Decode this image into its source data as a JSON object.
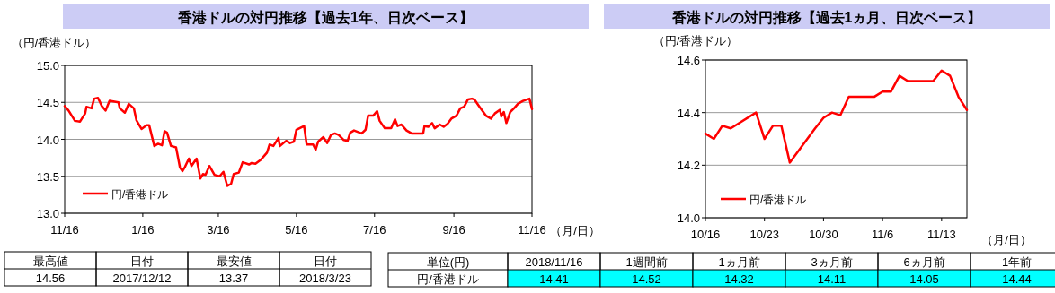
{
  "chart_data": [
    {
      "type": "line",
      "title": "香港ドルの対円推移【過去1年、日次ベース】",
      "ylabel": "（円/香港ドル）",
      "xlabel": "（月/日）",
      "legend": "bottom left",
      "grid": "y",
      "line_style": "solid",
      "marker": "none",
      "xlim": [
        "2017-11-16",
        "2018-11-16"
      ],
      "xticks": [
        {
          "value": "2017-11-16",
          "label": "11/16"
        },
        {
          "value": "2018-01-16",
          "label": "1/16"
        },
        {
          "value": "2018-03-16",
          "label": "3/16"
        },
        {
          "value": "2018-05-16",
          "label": "5/16"
        },
        {
          "value": "2018-07-16",
          "label": "7/16"
        },
        {
          "value": "2018-09-16",
          "label": "9/16"
        },
        {
          "value": "2018-11-16",
          "label": "11/16"
        }
      ],
      "ylim": [
        13,
        15
      ],
      "yticks": [
        {
          "value": 13,
          "label": "13.0"
        },
        {
          "value": 13.5,
          "label": "13.5"
        },
        {
          "value": 14,
          "label": "14.0"
        },
        {
          "value": 14.5,
          "label": "14.5"
        },
        {
          "value": 15,
          "label": "15.0"
        }
      ],
      "x": [
        "2017-11-16",
        "2017-11-19",
        "2017-11-24",
        "2017-11-28",
        "2017-12-02",
        "2017-12-03",
        "2017-12-07",
        "2017-12-09",
        "2017-12-12",
        "2017-12-15",
        "2017-12-18",
        "2017-12-21",
        "2017-12-28",
        "2017-12-29",
        "2018-01-02",
        "2018-01-05",
        "2018-01-09",
        "2018-01-11",
        "2018-01-15",
        "2018-01-19",
        "2018-01-21",
        "2018-01-25",
        "2018-01-28",
        "2018-01-31",
        "2018-02-02",
        "2018-02-04",
        "2018-02-07",
        "2018-02-11",
        "2018-02-14",
        "2018-02-16",
        "2018-02-18",
        "2018-02-21",
        "2018-02-23",
        "2018-02-27",
        "2018-03-02",
        "2018-03-04",
        "2018-03-06",
        "2018-03-09",
        "2018-03-13",
        "2018-03-17",
        "2018-03-20",
        "2018-03-23",
        "2018-03-26",
        "2018-03-28",
        "2018-04-01",
        "2018-04-04",
        "2018-04-09",
        "2018-04-11",
        "2018-04-14",
        "2018-04-18",
        "2018-04-23",
        "2018-04-25",
        "2018-04-28",
        "2018-05-02",
        "2018-05-03",
        "2018-05-08",
        "2018-05-11",
        "2018-05-14",
        "2018-05-16",
        "2018-05-22",
        "2018-05-24",
        "2018-05-29",
        "2018-05-31",
        "2018-06-02",
        "2018-06-06",
        "2018-06-09",
        "2018-06-12",
        "2018-06-15",
        "2018-06-18",
        "2018-06-22",
        "2018-06-25",
        "2018-06-27",
        "2018-06-30",
        "2018-07-06",
        "2018-07-09",
        "2018-07-11",
        "2018-07-15",
        "2018-07-18",
        "2018-07-20",
        "2018-07-24",
        "2018-07-29",
        "2018-08-01",
        "2018-08-03",
        "2018-08-06",
        "2018-08-10",
        "2018-08-14",
        "2018-08-23",
        "2018-08-24",
        "2018-08-27",
        "2018-08-30",
        "2018-09-01",
        "2018-09-05",
        "2018-09-08",
        "2018-09-11",
        "2018-09-14",
        "2018-09-18",
        "2018-09-21",
        "2018-09-24",
        "2018-09-27",
        "2018-09-30",
        "2018-10-02",
        "2018-10-06",
        "2018-10-11",
        "2018-10-15",
        "2018-10-18",
        "2018-10-22",
        "2018-10-23",
        "2018-10-25",
        "2018-10-27",
        "2018-10-30",
        "2018-11-02",
        "2018-11-05",
        "2018-11-09",
        "2018-11-14",
        "2018-11-16"
      ],
      "series": [
        {
          "name": "円/香港ドル",
          "color": "#ff0000",
          "values": [
            14.45,
            14.39,
            14.25,
            14.24,
            14.35,
            14.44,
            14.42,
            14.55,
            14.56,
            14.45,
            14.39,
            14.52,
            14.5,
            14.42,
            14.36,
            14.48,
            14.42,
            14.26,
            14.14,
            14.19,
            14.19,
            13.91,
            13.94,
            13.92,
            14.11,
            14.09,
            13.91,
            13.89,
            13.62,
            13.57,
            13.63,
            13.74,
            13.64,
            13.74,
            13.47,
            13.53,
            13.52,
            13.64,
            13.52,
            13.5,
            13.56,
            13.37,
            13.4,
            13.53,
            13.55,
            13.69,
            13.66,
            13.68,
            13.67,
            13.72,
            13.82,
            13.93,
            13.91,
            14.02,
            13.91,
            13.98,
            13.95,
            13.97,
            14.13,
            14.18,
            13.93,
            13.93,
            13.86,
            13.97,
            14.03,
            13.95,
            14.06,
            14.08,
            14.06,
            13.99,
            13.98,
            14.09,
            14.12,
            14.08,
            14.13,
            14.32,
            14.32,
            14.38,
            14.25,
            14.15,
            14.15,
            14.27,
            14.18,
            14.2,
            14.12,
            14.08,
            14.08,
            14.18,
            14.17,
            14.22,
            14.15,
            14.2,
            14.17,
            14.21,
            14.28,
            14.32,
            14.42,
            14.44,
            14.54,
            14.55,
            14.54,
            14.44,
            14.32,
            14.28,
            14.35,
            14.4,
            14.31,
            14.37,
            14.22,
            14.37,
            14.42,
            14.48,
            14.52,
            14.55,
            14.41
          ]
        }
      ]
    },
    {
      "type": "line",
      "title": "香港ドルの対円推移【過去1ヵ月、日次ベース】",
      "ylabel": "（円/香港ドル）",
      "xlabel": "（月/日）",
      "legend": "bottom left",
      "grid": "y",
      "line_style": "solid",
      "marker": "none",
      "xlim": [
        "2018-10-16",
        "2018-11-16"
      ],
      "xticks": [
        {
          "value": "2018-10-16",
          "label": "10/16"
        },
        {
          "value": "2018-10-23",
          "label": "10/23"
        },
        {
          "value": "2018-10-30",
          "label": "10/30"
        },
        {
          "value": "2018-11-06",
          "label": "11/6"
        },
        {
          "value": "2018-11-13",
          "label": "11/13"
        }
      ],
      "ylim": [
        14,
        14.6
      ],
      "yticks": [
        {
          "value": 14,
          "label": "14.0"
        },
        {
          "value": 14.2,
          "label": "14.2"
        },
        {
          "value": 14.4,
          "label": "14.4"
        },
        {
          "value": 14.6,
          "label": "14.6"
        }
      ],
      "x": [
        "2018-10-16",
        "2018-10-17",
        "2018-10-18",
        "2018-10-19",
        "2018-10-22",
        "2018-10-23",
        "2018-10-24",
        "2018-10-25",
        "2018-10-26",
        "2018-10-29",
        "2018-10-30",
        "2018-10-31",
        "2018-11-01",
        "2018-11-02",
        "2018-11-05",
        "2018-11-06",
        "2018-11-07",
        "2018-11-08",
        "2018-11-09",
        "2018-11-12",
        "2018-11-13",
        "2018-11-14",
        "2018-11-15",
        "2018-11-16"
      ],
      "series": [
        {
          "name": "円/香港ドル",
          "color": "#ff0000",
          "values": [
            14.32,
            14.3,
            14.35,
            14.34,
            14.4,
            14.3,
            14.35,
            14.35,
            14.21,
            14.34,
            14.38,
            14.4,
            14.39,
            14.46,
            14.46,
            14.48,
            14.48,
            14.54,
            14.52,
            14.52,
            14.56,
            14.54,
            14.46,
            14.41
          ]
        }
      ]
    },
    {
      "type": "other",
      "categories": [
        "最高値",
        "日付",
        "最安値",
        "日付"
      ],
      "annotations": [
        "14.56",
        "2017/12/12",
        "13.37",
        "2018/3/23"
      ]
    },
    {
      "type": "other",
      "categories": [
        "単位(円)",
        "2018/11/16",
        "1週間前",
        "1ヵ月前",
        "3ヵ月前",
        "6ヵ月前",
        "1年前"
      ],
      "annotations": [
        "円/香港ドル",
        "14.41",
        "14.52",
        "14.32",
        "14.11",
        "14.05",
        "14.44"
      ],
      "color": "#00ffff"
    }
  ]
}
